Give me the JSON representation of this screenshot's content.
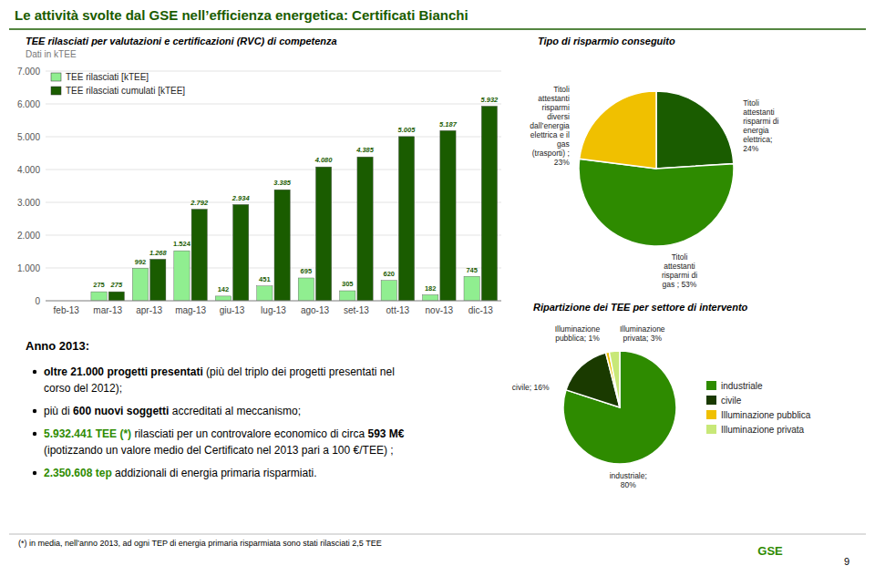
{
  "page": {
    "title": "Le attività svolte dal GSE nell’efficienza energetica: Certificati Bianchi",
    "heading": "Anno 2013:",
    "bullets": [
      [
        [
          "oltre 21.000 progetti presentati",
          " (più del triplo dei progetti presentati nel"
        ],
        [
          "corso del 2012);"
        ]
      ],
      [
        [
          "più di ",
          "600 nuovi soggetti",
          " accreditati al meccanismo;"
        ]
      ],
      [
        [
          "5.932.441 TEE (*)",
          " rilasciati per un controvalore economico di circa ",
          "593 M€"
        ],
        [
          "(ipotizzando un valore medio del Certificato nel 2013 pari a 100 €/TEE) ;"
        ]
      ],
      [
        [
          "2.350.608 tep",
          " addizionali di energia primaria risparmiati."
        ]
      ]
    ],
    "footnote": "(*) in media, nell’anno 2013, ad ogni TEP di energia primaria risparmiata sono stati rilasciati 2,5 TEE",
    "page_number": "9",
    "logo": "GSE"
  },
  "chart_data": [
    {
      "type": "bar",
      "title": "TEE rilasciati per valutazioni e certificazioni (RVC) di competenza",
      "subtitle": "Dati in kTEE",
      "categories": [
        "feb-13",
        "mar-13",
        "apr-13",
        "mag-13",
        "giu-13",
        "lug-13",
        "ago-13",
        "set-13",
        "ott-13",
        "nov-13",
        "dic-13"
      ],
      "series": [
        {
          "name": "TEE rilasciati [kTEE]",
          "color": "#90EE90",
          "values": [
            0,
            275,
            992,
            1524,
            142,
            451,
            695,
            305,
            620,
            182,
            745
          ],
          "value_labels": [
            null,
            "275",
            "992",
            "1.524",
            "142",
            "451",
            "695",
            "305",
            "620",
            "182",
            "745"
          ]
        },
        {
          "name": "TEE rilasciati cumulati [kTEE]",
          "color": "#1a5c00",
          "values": [
            0,
            275,
            1268,
            2792,
            2934,
            3385,
            4080,
            4385,
            5005,
            5187,
            5932
          ],
          "value_labels": [
            null,
            "275",
            "1.268",
            "2.792",
            "2.934",
            "3.385",
            "4.080",
            "4.385",
            "5.005",
            "5.187",
            "5.932"
          ]
        }
      ],
      "ylim": [
        0,
        7000
      ],
      "yticks": [
        0,
        {
          "value": 1000,
          "label": "1.000"
        },
        {
          "value": 2000,
          "label": "2.000"
        },
        {
          "value": 3000,
          "label": "3.000"
        },
        {
          "value": 4000,
          "label": "4.000"
        },
        {
          "value": 5000,
          "label": "5.000"
        },
        {
          "value": 6000,
          "label": "6.000"
        },
        {
          "value": 7000,
          "label": "7.000"
        }
      ],
      "grid": true,
      "legend": "upper-left",
      "data_labels": true
    },
    {
      "type": "pie",
      "title": "Tipo di risparmio conseguito",
      "values": [
        24,
        53,
        23
      ],
      "value_labels": [
        "Titoli\nattestanti\nrisparmi di\nenergia\nelettrica;\n24%",
        "Titoli\nattestanti\nrisparmi di\ngas ; 53%",
        "Titoli\nattestanti\nrisparmi\ndiversi\ndall’energia\nelettrica e il\ngas\n(trasporti) ;\n23%"
      ],
      "colors": [
        "#1a5c00",
        "#2e8b00",
        "#f0c000"
      ],
      "data_labels": true
    },
    {
      "type": "pie",
      "title": "Ripartizione dei TEE per settore di intervento",
      "categories": [
        "industriale",
        "civile",
        "Illuminazione pubblica",
        "Illuminazione privata"
      ],
      "values": [
        80,
        16,
        1,
        3
      ],
      "value_labels": [
        "industriale;\n80%",
        "civile; 16%",
        "Illuminazione\npubblica; 1%",
        "Illuminazione\nprivata; 3%"
      ],
      "colors": [
        "#2e8b00",
        "#1a3a00",
        "#f0c000",
        "#c8e878"
      ],
      "legend": "right",
      "data_labels": true
    }
  ]
}
